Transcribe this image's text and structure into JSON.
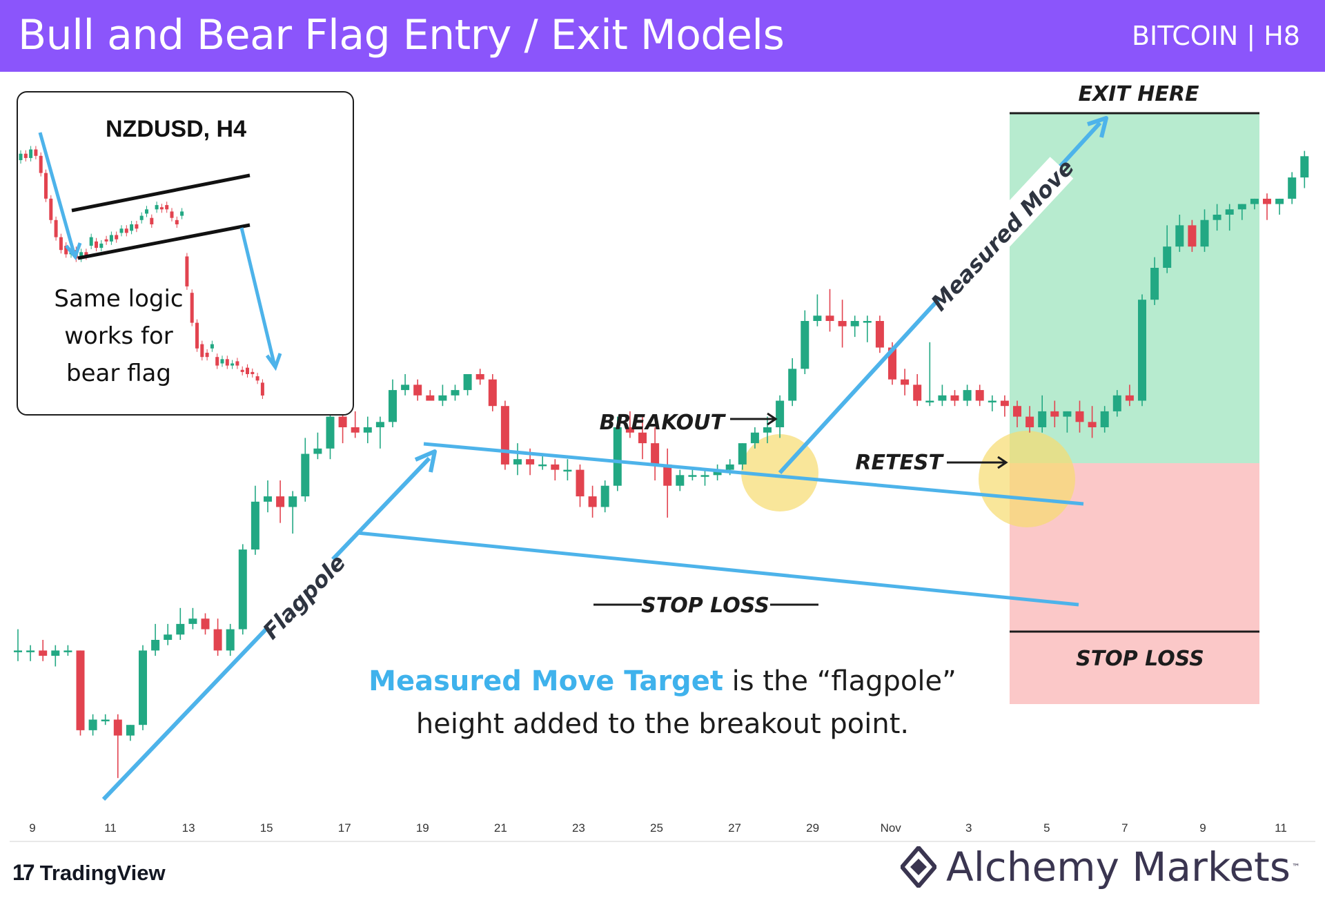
{
  "header": {
    "title": "Bull and Bear Flag Entry / Exit Models",
    "subtitle": "BITCOIN | H8",
    "background": "#8b55fb"
  },
  "chart_data": {
    "type": "candlestick",
    "title": "Bull and Bear Flag Entry / Exit Models",
    "symbol": "BITCOIN | H8",
    "x_ticks": [
      "9",
      "11",
      "13",
      "15",
      "17",
      "19",
      "21",
      "23",
      "25",
      "27",
      "29",
      "Nov",
      "3",
      "5",
      "7",
      "9",
      "11"
    ],
    "colors": {
      "up": "#22a883",
      "down": "#e2434f",
      "annotation_line": "#4db3ea",
      "highlight": "#f7dc6f",
      "target_zone": "#b7ebcf",
      "risk_zone": "#fbc8c8"
    },
    "price_range_pct": [
      0,
      100
    ],
    "candles": [
      {
        "o": 28,
        "h": 32,
        "l": 26,
        "c": 28
      },
      {
        "o": 28,
        "h": 29,
        "l": 26,
        "c": 28
      },
      {
        "o": 28,
        "h": 30,
        "l": 26,
        "c": 27
      },
      {
        "o": 27,
        "h": 29,
        "l": 25,
        "c": 28
      },
      {
        "o": 28,
        "h": 29,
        "l": 27,
        "c": 28
      },
      {
        "o": 28,
        "h": 28,
        "l": 12,
        "c": 13
      },
      {
        "o": 13,
        "h": 16,
        "l": 12,
        "c": 15
      },
      {
        "o": 15,
        "h": 16,
        "l": 14,
        "c": 15
      },
      {
        "o": 15,
        "h": 16,
        "l": 4,
        "c": 12
      },
      {
        "o": 12,
        "h": 14,
        "l": 11,
        "c": 14
      },
      {
        "o": 14,
        "h": 29,
        "l": 13,
        "c": 28
      },
      {
        "o": 28,
        "h": 33,
        "l": 27,
        "c": 30
      },
      {
        "o": 30,
        "h": 33,
        "l": 29,
        "c": 31
      },
      {
        "o": 31,
        "h": 36,
        "l": 30,
        "c": 33
      },
      {
        "o": 33,
        "h": 36,
        "l": 32,
        "c": 34
      },
      {
        "o": 34,
        "h": 35,
        "l": 31,
        "c": 32
      },
      {
        "o": 32,
        "h": 34,
        "l": 27,
        "c": 28
      },
      {
        "o": 28,
        "h": 33,
        "l": 27,
        "c": 32
      },
      {
        "o": 32,
        "h": 48,
        "l": 31,
        "c": 47
      },
      {
        "o": 47,
        "h": 59,
        "l": 46,
        "c": 56
      },
      {
        "o": 56,
        "h": 60,
        "l": 54,
        "c": 57
      },
      {
        "o": 57,
        "h": 60,
        "l": 52,
        "c": 55
      },
      {
        "o": 55,
        "h": 58,
        "l": 50,
        "c": 57
      },
      {
        "o": 57,
        "h": 68,
        "l": 56,
        "c": 65
      },
      {
        "o": 65,
        "h": 69,
        "l": 64,
        "c": 66
      },
      {
        "o": 66,
        "h": 75,
        "l": 64,
        "c": 72
      },
      {
        "o": 72,
        "h": 74,
        "l": 67,
        "c": 70
      },
      {
        "o": 70,
        "h": 73,
        "l": 68,
        "c": 69
      },
      {
        "o": 69,
        "h": 72,
        "l": 67,
        "c": 70
      },
      {
        "o": 70,
        "h": 72,
        "l": 66,
        "c": 71
      },
      {
        "o": 71,
        "h": 79,
        "l": 70,
        "c": 77
      },
      {
        "o": 77,
        "h": 80,
        "l": 76,
        "c": 78
      },
      {
        "o": 78,
        "h": 79,
        "l": 75,
        "c": 76
      },
      {
        "o": 76,
        "h": 77,
        "l": 75,
        "c": 75
      },
      {
        "o": 75,
        "h": 78,
        "l": 74,
        "c": 76
      },
      {
        "o": 76,
        "h": 78,
        "l": 75,
        "c": 77
      },
      {
        "o": 77,
        "h": 80,
        "l": 76,
        "c": 80
      },
      {
        "o": 80,
        "h": 81,
        "l": 78,
        "c": 79
      },
      {
        "o": 79,
        "h": 80,
        "l": 73,
        "c": 74
      },
      {
        "o": 74,
        "h": 75,
        "l": 62,
        "c": 63
      },
      {
        "o": 63,
        "h": 67,
        "l": 61,
        "c": 64
      },
      {
        "o": 64,
        "h": 66,
        "l": 61,
        "c": 63
      },
      {
        "o": 63,
        "h": 65,
        "l": 62,
        "c": 63
      },
      {
        "o": 63,
        "h": 64,
        "l": 60,
        "c": 62
      },
      {
        "o": 62,
        "h": 64,
        "l": 60,
        "c": 62
      },
      {
        "o": 62,
        "h": 63,
        "l": 55,
        "c": 57
      },
      {
        "o": 57,
        "h": 59,
        "l": 53,
        "c": 55
      },
      {
        "o": 55,
        "h": 60,
        "l": 54,
        "c": 59
      },
      {
        "o": 59,
        "h": 72,
        "l": 58,
        "c": 70
      },
      {
        "o": 70,
        "h": 73,
        "l": 68,
        "c": 69
      },
      {
        "o": 69,
        "h": 72,
        "l": 64,
        "c": 67
      },
      {
        "o": 67,
        "h": 70,
        "l": 60,
        "c": 63
      },
      {
        "o": 63,
        "h": 66,
        "l": 53,
        "c": 59
      },
      {
        "o": 59,
        "h": 62,
        "l": 58,
        "c": 61
      },
      {
        "o": 61,
        "h": 62,
        "l": 60,
        "c": 61
      },
      {
        "o": 61,
        "h": 62,
        "l": 59,
        "c": 61
      },
      {
        "o": 61,
        "h": 63,
        "l": 60,
        "c": 62
      },
      {
        "o": 62,
        "h": 64,
        "l": 61,
        "c": 63
      },
      {
        "o": 63,
        "h": 67,
        "l": 62,
        "c": 67
      },
      {
        "o": 67,
        "h": 70,
        "l": 66,
        "c": 69
      },
      {
        "o": 69,
        "h": 72,
        "l": 67,
        "c": 70
      },
      {
        "o": 70,
        "h": 76,
        "l": 68,
        "c": 75
      },
      {
        "o": 75,
        "h": 83,
        "l": 74,
        "c": 81
      },
      {
        "o": 81,
        "h": 92,
        "l": 80,
        "c": 90
      },
      {
        "o": 90,
        "h": 95,
        "l": 89,
        "c": 91
      },
      {
        "o": 91,
        "h": 96,
        "l": 88,
        "c": 90
      },
      {
        "o": 90,
        "h": 94,
        "l": 85,
        "c": 89
      },
      {
        "o": 89,
        "h": 91,
        "l": 87,
        "c": 90
      },
      {
        "o": 90,
        "h": 91,
        "l": 86,
        "c": 90
      },
      {
        "o": 90,
        "h": 91,
        "l": 84,
        "c": 85
      },
      {
        "o": 85,
        "h": 86,
        "l": 78,
        "c": 79
      },
      {
        "o": 79,
        "h": 81,
        "l": 76,
        "c": 78
      },
      {
        "o": 78,
        "h": 80,
        "l": 74,
        "c": 75
      },
      {
        "o": 75,
        "h": 86,
        "l": 74,
        "c": 75
      },
      {
        "o": 75,
        "h": 78,
        "l": 74,
        "c": 76
      },
      {
        "o": 76,
        "h": 77,
        "l": 74,
        "c": 75
      },
      {
        "o": 75,
        "h": 78,
        "l": 74,
        "c": 77
      },
      {
        "o": 77,
        "h": 78,
        "l": 74,
        "c": 75
      },
      {
        "o": 75,
        "h": 76,
        "l": 73,
        "c": 75
      },
      {
        "o": 75,
        "h": 76,
        "l": 72,
        "c": 74
      },
      {
        "o": 74,
        "h": 75,
        "l": 70,
        "c": 72
      },
      {
        "o": 72,
        "h": 74,
        "l": 69,
        "c": 70
      },
      {
        "o": 70,
        "h": 76,
        "l": 69,
        "c": 73
      },
      {
        "o": 73,
        "h": 75,
        "l": 70,
        "c": 72
      },
      {
        "o": 72,
        "h": 73,
        "l": 69,
        "c": 73
      },
      {
        "o": 73,
        "h": 75,
        "l": 69,
        "c": 71
      },
      {
        "o": 71,
        "h": 74,
        "l": 68,
        "c": 70
      },
      {
        "o": 70,
        "h": 74,
        "l": 69,
        "c": 73
      },
      {
        "o": 73,
        "h": 77,
        "l": 72,
        "c": 76
      },
      {
        "o": 76,
        "h": 78,
        "l": 74,
        "c": 75
      },
      {
        "o": 75,
        "h": 95,
        "l": 74,
        "c": 94
      },
      {
        "o": 94,
        "h": 102,
        "l": 93,
        "c": 100
      },
      {
        "o": 100,
        "h": 108,
        "l": 99,
        "c": 104
      },
      {
        "o": 104,
        "h": 110,
        "l": 103,
        "c": 108
      },
      {
        "o": 108,
        "h": 109,
        "l": 103,
        "c": 104
      },
      {
        "o": 104,
        "h": 111,
        "l": 103,
        "c": 109
      },
      {
        "o": 109,
        "h": 112,
        "l": 107,
        "c": 110
      },
      {
        "o": 110,
        "h": 112,
        "l": 107,
        "c": 111
      },
      {
        "o": 111,
        "h": 112,
        "l": 109,
        "c": 112
      },
      {
        "o": 112,
        "h": 113,
        "l": 111,
        "c": 113
      },
      {
        "o": 113,
        "h": 114,
        "l": 109,
        "c": 112
      },
      {
        "o": 112,
        "h": 113,
        "l": 110,
        "c": 113
      },
      {
        "o": 113,
        "h": 118,
        "l": 112,
        "c": 117
      },
      {
        "o": 117,
        "h": 122,
        "l": 115,
        "c": 121
      }
    ],
    "annotations": {
      "flagpole_label": "Flagpole",
      "measured_move_label": "Measured Move",
      "breakout_label": "BREAKOUT",
      "retest_label": "RETEST",
      "stop_loss_label": "STOP LOSS",
      "exit_label": "EXIT HERE",
      "zone_stop_label": "STOP LOSS"
    },
    "caption": {
      "highlight": "Measured Move Target",
      "rest_line1": " is the “flagpole”",
      "line2": "height added to the breakout point."
    },
    "inset": {
      "title": "NZDUSD, H4",
      "text_lines": [
        "Same logic",
        "works for",
        "bear flag"
      ]
    }
  },
  "branding": {
    "left": "TradingView",
    "left_mark": "17",
    "right": "Alchemy Markets",
    "right_tm": "™"
  }
}
